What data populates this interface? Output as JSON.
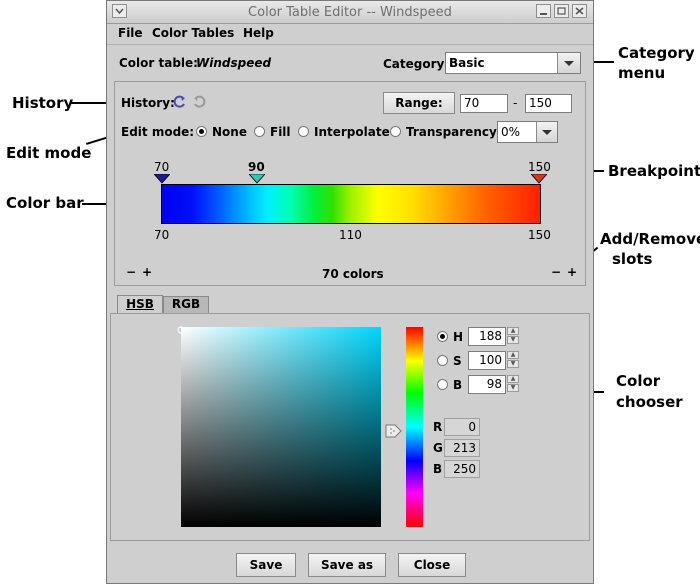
{
  "annotations": {
    "category_menu": [
      "Category",
      "menu"
    ],
    "history": "History",
    "edit_mode": "Edit mode",
    "breakpoint": "Breakpoint",
    "color_bar": "Color bar",
    "add_remove_slots": [
      "Add/Remove",
      "slots"
    ],
    "color_chooser": [
      "Color",
      "chooser"
    ]
  },
  "window": {
    "title": "Color Table Editor -- Windspeed",
    "menu": [
      "File",
      "Color Tables",
      "Help"
    ]
  },
  "header": {
    "color_table_label": "Color table:",
    "color_table_name": "Windspeed",
    "category_label": "Category:",
    "category_value": "Basic"
  },
  "history": {
    "label": "History:"
  },
  "range": {
    "button": "Range:",
    "min": "70",
    "sep": "-",
    "max": "150"
  },
  "edit_mode": {
    "label": "Edit mode:",
    "options": [
      "None",
      "Fill",
      "Interpolate",
      "Transparency:"
    ],
    "selected": "None",
    "transparency_value": "0%"
  },
  "colorbar": {
    "breakpoints": [
      {
        "label": "70",
        "bold": false,
        "color": "#1a1aa0"
      },
      {
        "label": "90",
        "bold": true,
        "color": "#2fc9b5"
      },
      {
        "label": "150",
        "bold": false,
        "color": "#d43a1c"
      }
    ],
    "ticks": [
      "70",
      "110",
      "150"
    ],
    "count_label": "70 colors",
    "minus": "−",
    "plus": "+"
  },
  "tabs": [
    "HSB",
    "RGB"
  ],
  "chooser": {
    "hsb": [
      {
        "label": "H",
        "value": "188",
        "selected": true
      },
      {
        "label": "S",
        "value": "100",
        "selected": false
      },
      {
        "label": "B",
        "value": "98",
        "selected": false
      }
    ],
    "rgb": [
      {
        "label": "R",
        "value": "0"
      },
      {
        "label": "G",
        "value": "213"
      },
      {
        "label": "B",
        "value": "250"
      }
    ],
    "hue_color": "#00d5fa"
  },
  "footer": {
    "save": "Save",
    "save_as": "Save as",
    "close": "Close"
  }
}
